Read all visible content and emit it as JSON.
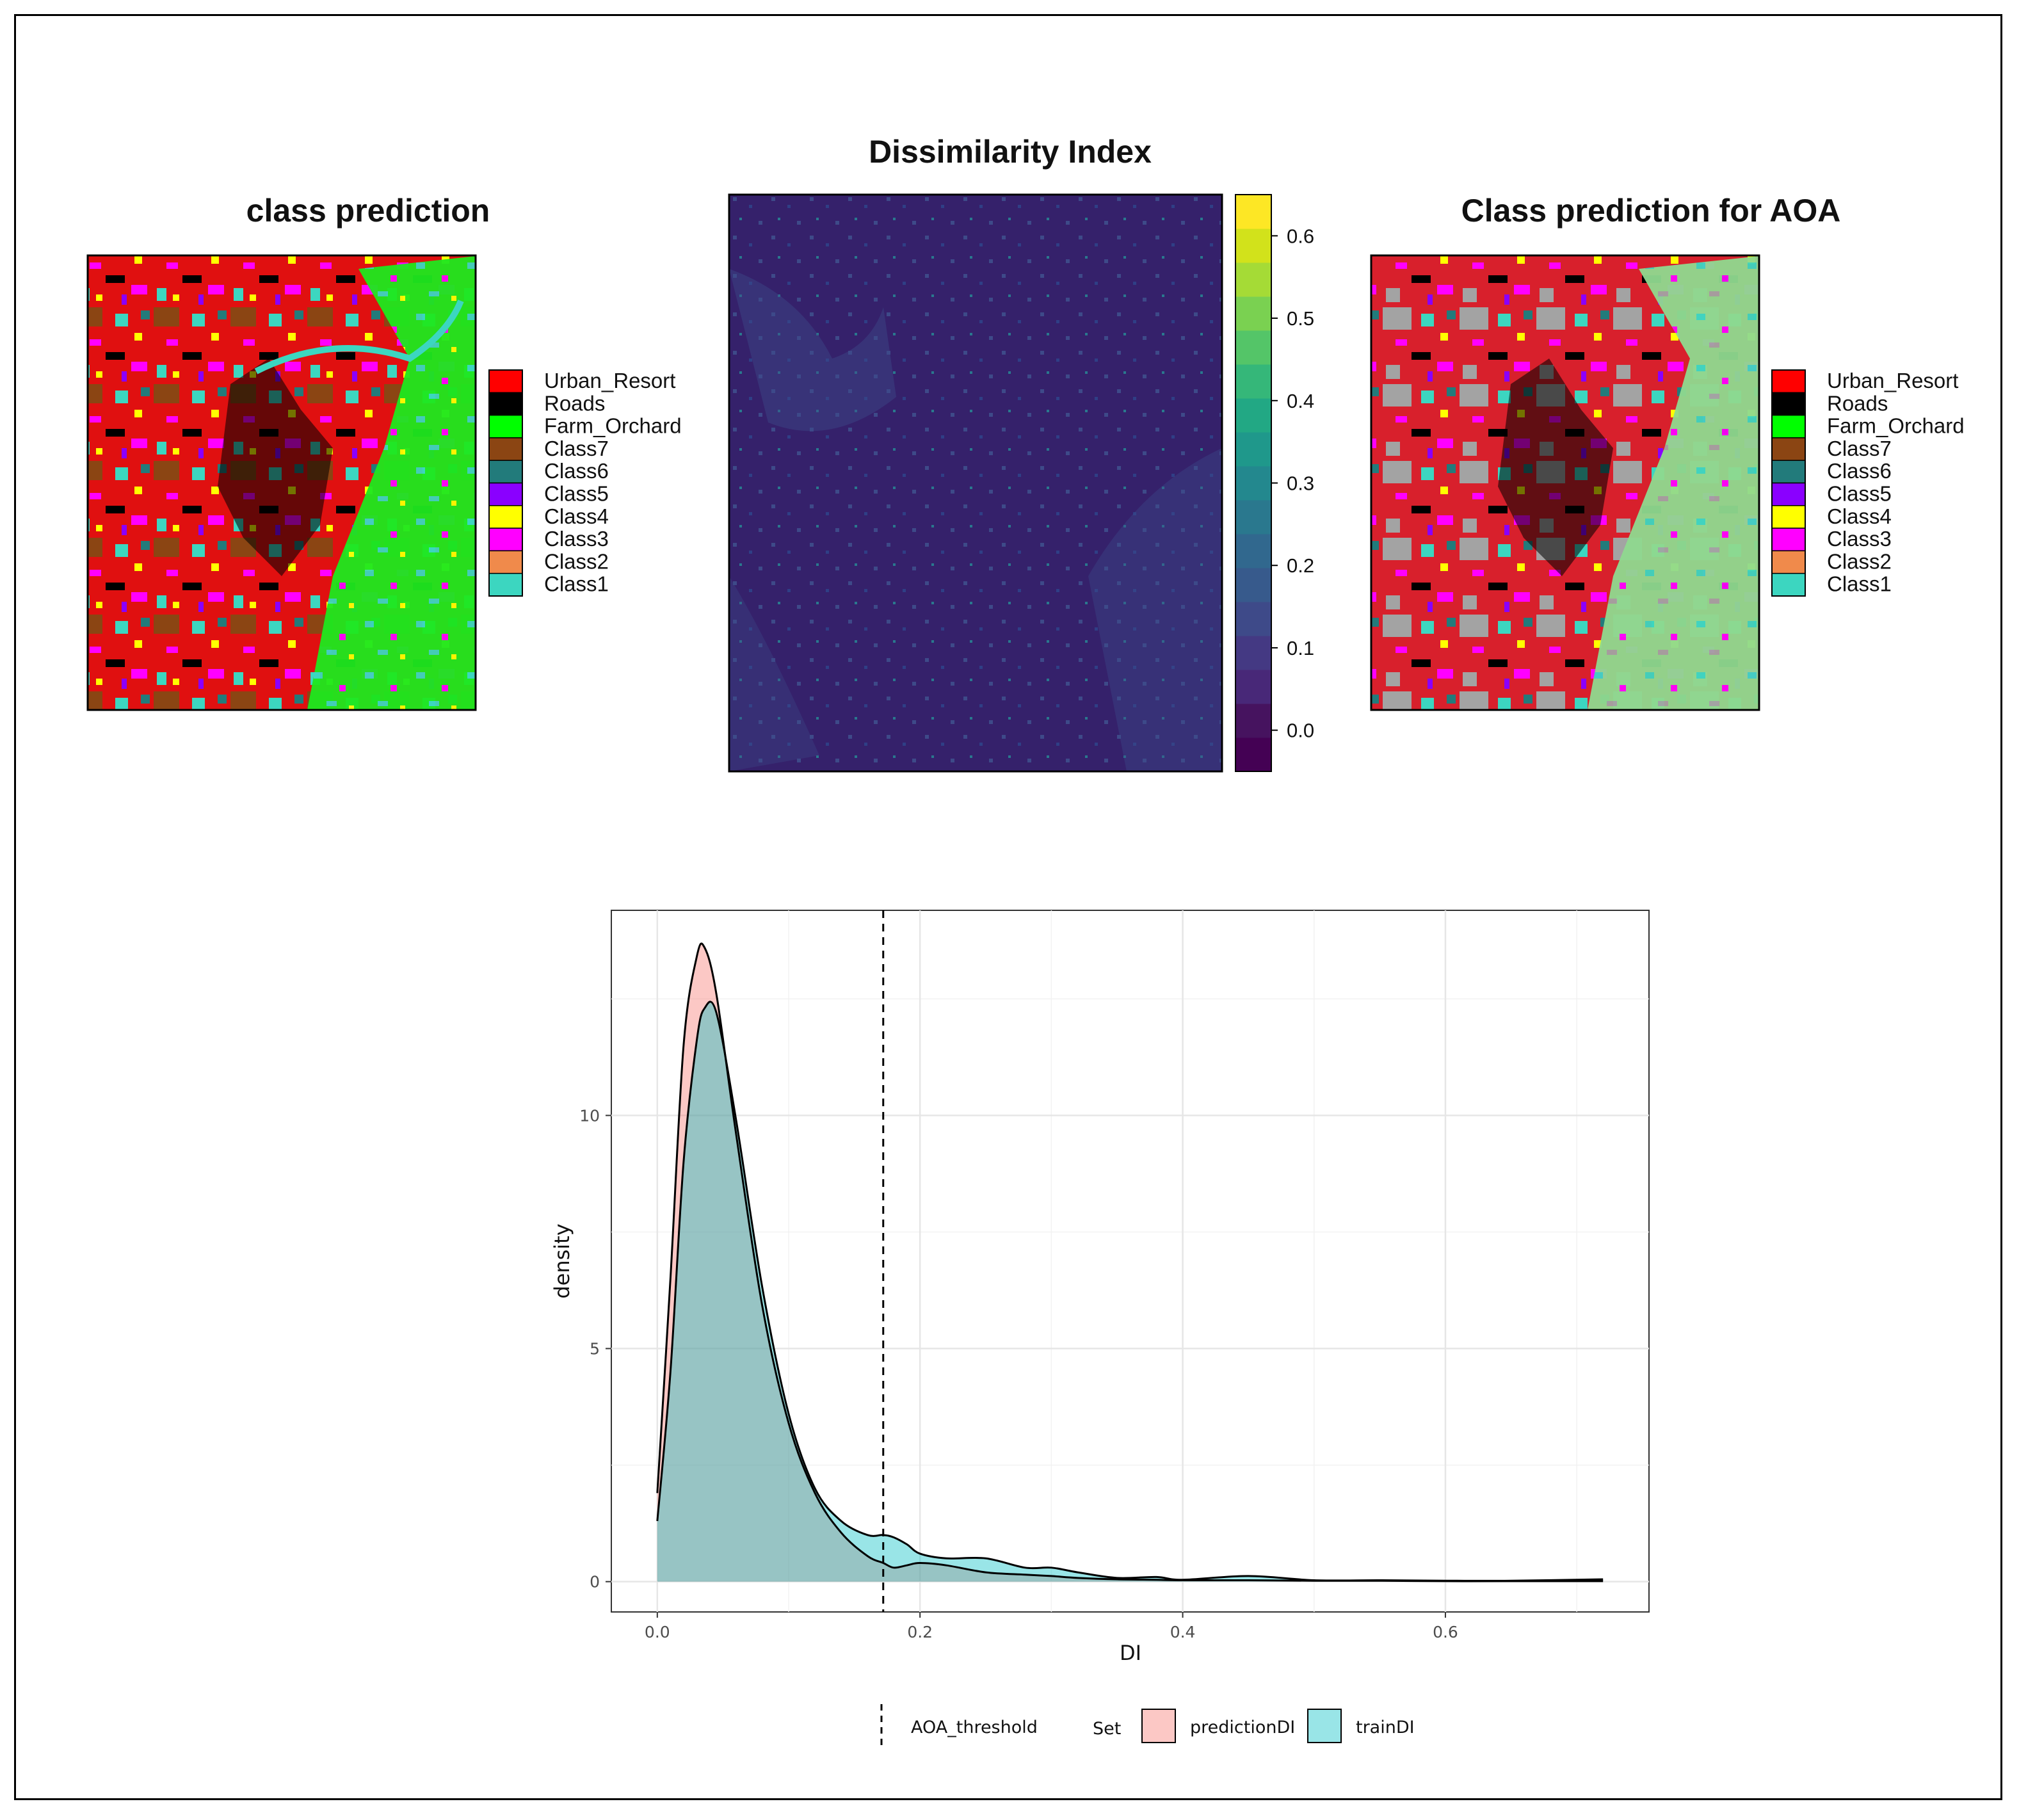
{
  "panels": {
    "left_map_title": "class prediction",
    "center_map_title": "Dissimilarity Index",
    "right_map_title": "Class prediction for AOA"
  },
  "class_legend": [
    {
      "label": "Urban_Resort",
      "color": "#ff0000"
    },
    {
      "label": "Roads",
      "color": "#000000"
    },
    {
      "label": "Farm_Orchard",
      "color": "#00ff00"
    },
    {
      "label": "Class7",
      "color": "#8b4513"
    },
    {
      "label": "Class6",
      "color": "#227b7b"
    },
    {
      "label": "Class5",
      "color": "#8a00ff"
    },
    {
      "label": "Class4",
      "color": "#ffff00"
    },
    {
      "label": "Class3",
      "color": "#ff00ff"
    },
    {
      "label": "Class2",
      "color": "#f08a4b"
    },
    {
      "label": "Class1",
      "color": "#3cd6c0"
    }
  ],
  "colorbar": {
    "ticks": [
      "0.0",
      "0.1",
      "0.2",
      "0.3",
      "0.4",
      "0.5",
      "0.6"
    ],
    "min": -0.05,
    "max": 0.65,
    "colors": [
      "#440154",
      "#46135f",
      "#482878",
      "#443983",
      "#3e4a89",
      "#375a8c",
      "#31688e",
      "#2a788e",
      "#23888e",
      "#1f988b",
      "#22a884",
      "#35b779",
      "#54c568",
      "#7ad151",
      "#a5db36",
      "#d2e21b",
      "#fde725"
    ]
  },
  "chart_data": {
    "type": "area",
    "title": "",
    "xlabel": "DI",
    "ylabel": "density",
    "xlim": [
      -0.035,
      0.755
    ],
    "ylim": [
      -0.65,
      14.4
    ],
    "x_ticks": [
      "0.0",
      "0.2",
      "0.4",
      "0.6"
    ],
    "x_tick_values": [
      0.0,
      0.2,
      0.4,
      0.6
    ],
    "y_ticks": [
      "0",
      "5",
      "10"
    ],
    "y_tick_values": [
      0,
      5,
      10
    ],
    "threshold": {
      "label": "AOA_threshold",
      "x": 0.172
    },
    "legend_title": "Set",
    "series": [
      {
        "name": "predictionDI",
        "color": "#f8766d",
        "x": [
          0.0,
          0.01,
          0.02,
          0.03,
          0.036,
          0.045,
          0.06,
          0.08,
          0.1,
          0.12,
          0.14,
          0.16,
          0.172,
          0.18,
          0.19,
          0.2,
          0.22,
          0.25,
          0.28,
          0.3,
          0.32,
          0.35,
          0.38,
          0.4,
          0.45,
          0.5,
          0.55,
          0.6,
          0.65,
          0.72
        ],
        "y": [
          1.9,
          6.5,
          11.5,
          13.4,
          13.6,
          12.6,
          9.6,
          5.9,
          3.4,
          1.9,
          1.05,
          0.55,
          0.4,
          0.3,
          0.35,
          0.4,
          0.35,
          0.2,
          0.15,
          0.12,
          0.08,
          0.05,
          0.04,
          0.03,
          0.03,
          0.02,
          0.02,
          0.01,
          0.01,
          0.01
        ]
      },
      {
        "name": "trainDI",
        "color": "#00bfc4",
        "x": [
          0.0,
          0.01,
          0.02,
          0.03,
          0.036,
          0.045,
          0.06,
          0.08,
          0.1,
          0.12,
          0.14,
          0.16,
          0.172,
          0.18,
          0.19,
          0.2,
          0.22,
          0.25,
          0.28,
          0.3,
          0.32,
          0.35,
          0.38,
          0.4,
          0.45,
          0.5,
          0.55,
          0.6,
          0.65,
          0.72
        ],
        "y": [
          1.3,
          4.5,
          9.0,
          11.6,
          12.3,
          12.2,
          9.9,
          6.3,
          3.6,
          2.0,
          1.3,
          1.0,
          1.0,
          0.95,
          0.8,
          0.6,
          0.5,
          0.5,
          0.3,
          0.3,
          0.2,
          0.08,
          0.1,
          0.04,
          0.12,
          0.03,
          0.03,
          0.02,
          0.02,
          0.05
        ]
      }
    ],
    "overlap_color": "#a4bfbd"
  }
}
